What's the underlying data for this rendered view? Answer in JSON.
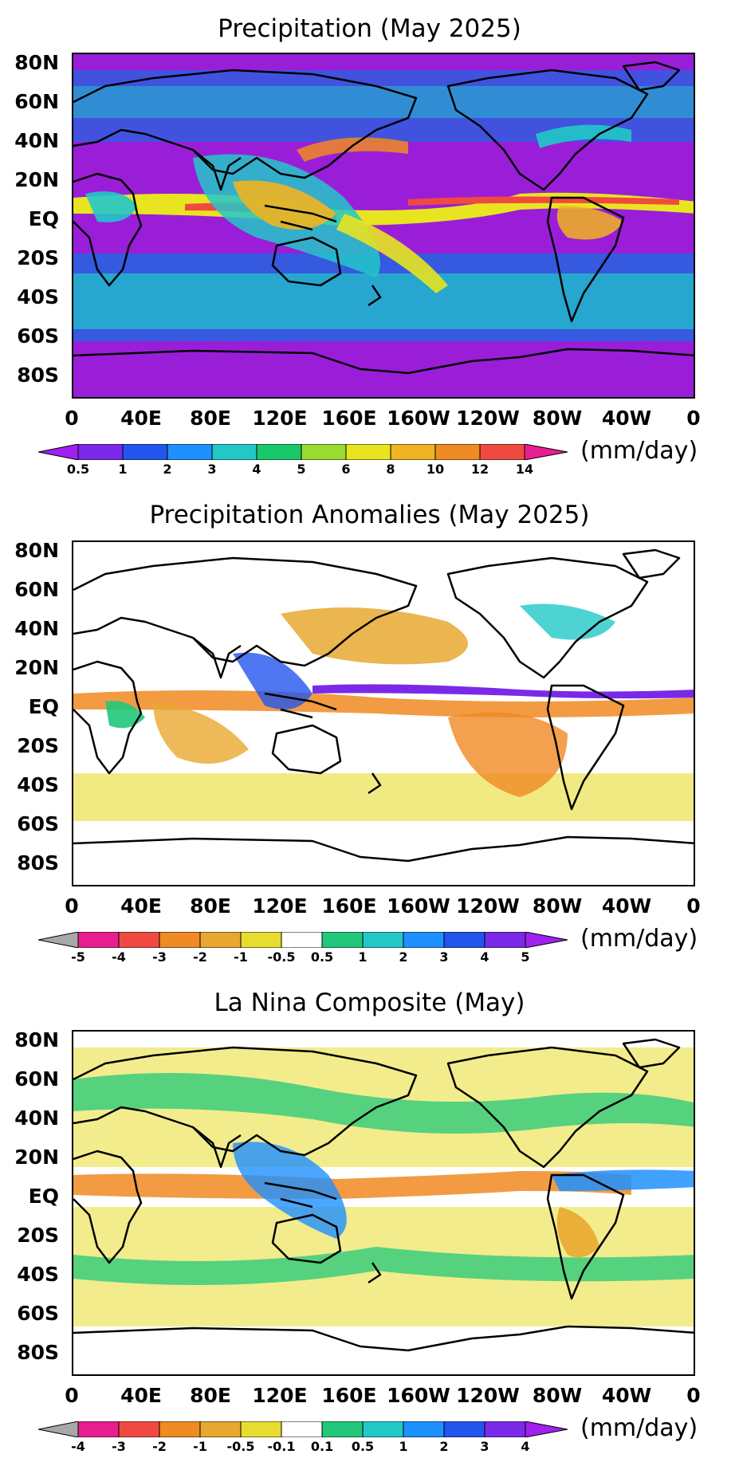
{
  "panels": [
    {
      "title": "Precipitation (May 2025)",
      "units": "(mm/day)",
      "lat_labels": [
        "80N",
        "60N",
        "40N",
        "20N",
        "EQ",
        "20S",
        "40S",
        "60S",
        "80S"
      ],
      "lon_labels": [
        "0",
        "40E",
        "80E",
        "120E",
        "160E",
        "160W",
        "120W",
        "80W",
        "40W",
        "0"
      ],
      "colorbar": {
        "labels": [
          "0.5",
          "1",
          "2",
          "3",
          "4",
          "5",
          "6",
          "8",
          "10",
          "12",
          "14"
        ],
        "colors": [
          "#a020f0",
          "#7a29e8",
          "#2255ee",
          "#1e90ff",
          "#22c8c8",
          "#18c86a",
          "#9adc30",
          "#e8e420",
          "#f0b420",
          "#f08a22",
          "#f04a40",
          "#e81e90"
        ]
      },
      "background_color": "#9a1ed8"
    },
    {
      "title": "Precipitation Anomalies (May 2025)",
      "units": "(mm/day)",
      "lat_labels": [
        "80N",
        "60N",
        "40N",
        "20N",
        "EQ",
        "20S",
        "40S",
        "60S",
        "80S"
      ],
      "lon_labels": [
        "0",
        "40E",
        "80E",
        "120E",
        "160E",
        "160W",
        "120W",
        "80W",
        "40W",
        "0"
      ],
      "colorbar": {
        "labels": [
          "-5",
          "-4",
          "-3",
          "-2",
          "-1",
          "-0.5",
          "0.5",
          "1",
          "2",
          "3",
          "4",
          "5"
        ],
        "colors": [
          "#a8a8a8",
          "#e81e90",
          "#f04a40",
          "#f08a22",
          "#e8a830",
          "#e8dc30",
          "#ffffff",
          "#22c87a",
          "#22c8c8",
          "#1e90ff",
          "#2255ee",
          "#7a29e8",
          "#a020f0"
        ]
      },
      "background_color": "#ffffff"
    },
    {
      "title": "La Nina Composite (May)",
      "units": "(mm/day)",
      "lat_labels": [
        "80N",
        "60N",
        "40N",
        "20N",
        "EQ",
        "20S",
        "40S",
        "60S",
        "80S"
      ],
      "lon_labels": [
        "0",
        "40E",
        "80E",
        "120E",
        "160E",
        "160W",
        "120W",
        "80W",
        "40W",
        "0"
      ],
      "colorbar": {
        "labels": [
          "-4",
          "-3",
          "-2",
          "-1",
          "-0.5",
          "-0.1",
          "0.1",
          "0.5",
          "1",
          "2",
          "3",
          "4"
        ],
        "colors": [
          "#a8a8a8",
          "#e81e90",
          "#f04a40",
          "#f08a22",
          "#e8a830",
          "#e8dc30",
          "#ffffff",
          "#22c87a",
          "#22c8c8",
          "#1e90ff",
          "#2255ee",
          "#7a29e8",
          "#a020f0"
        ]
      },
      "background_color": "#ffffff"
    }
  ]
}
